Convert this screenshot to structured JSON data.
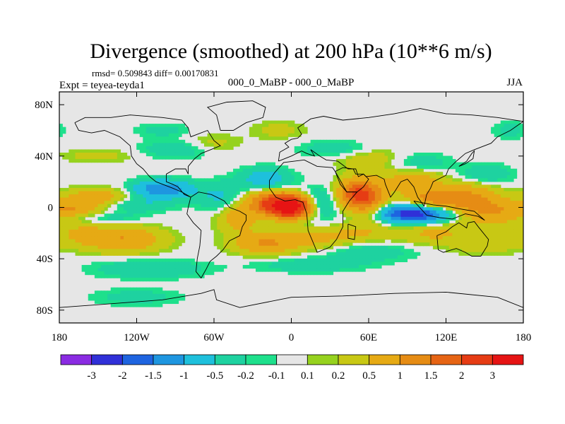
{
  "chart_data": {
    "type": "heatmap",
    "title": "Divergence (smoothed) at 200 hPa (10**6 m/s)",
    "subtitle_left_stats": "rmsd= 0.509843 diff= 0.00170831",
    "subtitle_left": "Expt = teyea-teyda1",
    "subtitle_center": "000_0_MaBP - 000_0_MaBP",
    "subtitle_right": "JJA",
    "xlim": [
      -180,
      180
    ],
    "ylim": [
      -90,
      90
    ],
    "x_ticks": [
      {
        "value": -180,
        "label": "180"
      },
      {
        "value": -120,
        "label": "120W"
      },
      {
        "value": -60,
        "label": "60W"
      },
      {
        "value": 0,
        "label": "0"
      },
      {
        "value": 60,
        "label": "60E"
      },
      {
        "value": 120,
        "label": "120E"
      },
      {
        "value": 180,
        "label": "180"
      }
    ],
    "y_ticks": [
      {
        "value": 80,
        "label": "80N"
      },
      {
        "value": 40,
        "label": "40N"
      },
      {
        "value": 0,
        "label": "0"
      },
      {
        "value": -40,
        "label": "40S"
      },
      {
        "value": -80,
        "label": "80S"
      }
    ],
    "colorbar": {
      "colors": [
        "#8a2be2",
        "#3030d8",
        "#1e64e0",
        "#1e96e0",
        "#1ec0dc",
        "#1ed2a0",
        "#1ee08c",
        "#e6e6e6",
        "#96d21e",
        "#c8c814",
        "#e6aa14",
        "#e68c14",
        "#e66414",
        "#e63c14",
        "#e61414"
      ],
      "labels": [
        "-3",
        "-2",
        "-1.5",
        "-1",
        "-0.5",
        "-0.2",
        "-0.1",
        "0.1",
        "0.2",
        "0.5",
        "1",
        "1.5",
        "2",
        "3"
      ]
    },
    "anomalies": [
      {
        "lon": 0,
        "lat": 0,
        "value": 3.5,
        "slon": 12,
        "slat": 6
      },
      {
        "lon": -15,
        "lat": 4,
        "value": 1.5,
        "slon": 14,
        "slat": 6
      },
      {
        "lon": -20,
        "lat": 22,
        "value": -0.8,
        "slon": 14,
        "slat": 6
      },
      {
        "lon": 20,
        "lat": 2,
        "value": -0.9,
        "slon": 10,
        "slat": 8
      },
      {
        "lon": -55,
        "lat": 8,
        "value": -0.6,
        "slon": 12,
        "slat": 8
      },
      {
        "lon": -40,
        "lat": -8,
        "value": 0.8,
        "slon": 12,
        "slat": 8
      },
      {
        "lon": -100,
        "lat": 14,
        "value": -1.5,
        "slon": 16,
        "slat": 5
      },
      {
        "lon": -150,
        "lat": 8,
        "value": 0.8,
        "slon": 18,
        "slat": 5
      },
      {
        "lon": -170,
        "lat": -2,
        "value": 0.9,
        "slon": 16,
        "slat": 5
      },
      {
        "lon": -150,
        "lat": -8,
        "value": -0.4,
        "slon": 24,
        "slat": 3
      },
      {
        "lon": -120,
        "lat": 2,
        "value": -0.5,
        "slon": 20,
        "slat": 4
      },
      {
        "lon": -130,
        "lat": -25,
        "value": 1.0,
        "slon": 22,
        "slat": 7
      },
      {
        "lon": -165,
        "lat": -20,
        "value": 0.4,
        "slon": 14,
        "slat": 7
      },
      {
        "lon": -110,
        "lat": -48,
        "value": -0.5,
        "slon": 30,
        "slat": 5
      },
      {
        "lon": -20,
        "lat": -28,
        "value": 1.0,
        "slon": 18,
        "slat": 6
      },
      {
        "lon": 20,
        "lat": -25,
        "value": 0.5,
        "slon": 20,
        "slat": 6
      },
      {
        "lon": 15,
        "lat": -45,
        "value": -0.4,
        "slon": 30,
        "slat": 4
      },
      {
        "lon": 60,
        "lat": -35,
        "value": -0.4,
        "slon": 25,
        "slat": 5
      },
      {
        "lon": 50,
        "lat": -20,
        "value": 0.4,
        "slon": 18,
        "slat": 5
      },
      {
        "lon": 50,
        "lat": 10,
        "value": 1.8,
        "slon": 10,
        "slat": 8
      },
      {
        "lon": 62,
        "lat": 5,
        "value": 1.0,
        "slon": 10,
        "slat": 12
      },
      {
        "lon": 95,
        "lat": -5,
        "value": -2.5,
        "slon": 20,
        "slat": 5
      },
      {
        "lon": 110,
        "lat": 5,
        "value": 1.3,
        "slon": 15,
        "slat": 6
      },
      {
        "lon": 95,
        "lat": 20,
        "value": 0.9,
        "slon": 15,
        "slat": 6
      },
      {
        "lon": 140,
        "lat": 5,
        "value": 1.1,
        "slon": 15,
        "slat": 10
      },
      {
        "lon": 160,
        "lat": -5,
        "value": 0.6,
        "slon": 15,
        "slat": 8
      },
      {
        "lon": 150,
        "lat": 25,
        "value": -0.5,
        "slon": 15,
        "slat": 6
      },
      {
        "lon": 100,
        "lat": 35,
        "value": -0.4,
        "slon": 16,
        "slat": 5
      },
      {
        "lon": 60,
        "lat": 38,
        "value": 0.4,
        "slon": 20,
        "slat": 6
      },
      {
        "lon": 35,
        "lat": 45,
        "value": -0.4,
        "slon": 20,
        "slat": 5
      },
      {
        "lon": 110,
        "lat": -20,
        "value": 0.6,
        "slon": 20,
        "slat": 6
      },
      {
        "lon": 150,
        "lat": -30,
        "value": 0.4,
        "slon": 18,
        "slat": 5
      },
      {
        "lon": -150,
        "lat": 40,
        "value": 0.3,
        "slon": 20,
        "slat": 4
      },
      {
        "lon": -90,
        "lat": 45,
        "value": -0.4,
        "slon": 20,
        "slat": 5
      },
      {
        "lon": -60,
        "lat": 50,
        "value": 0.3,
        "slon": 15,
        "slat": 5
      },
      {
        "lon": -100,
        "lat": 60,
        "value": -0.3,
        "slon": 15,
        "slat": 4
      },
      {
        "lon": -120,
        "lat": -70,
        "value": -0.3,
        "slon": 25,
        "slat": 5
      },
      {
        "lon": -10,
        "lat": 60,
        "value": 0.3,
        "slon": 15,
        "slat": 5
      },
      {
        "lon": 170,
        "lat": 60,
        "value": -0.3,
        "slon": 10,
        "slat": 5
      }
    ]
  }
}
